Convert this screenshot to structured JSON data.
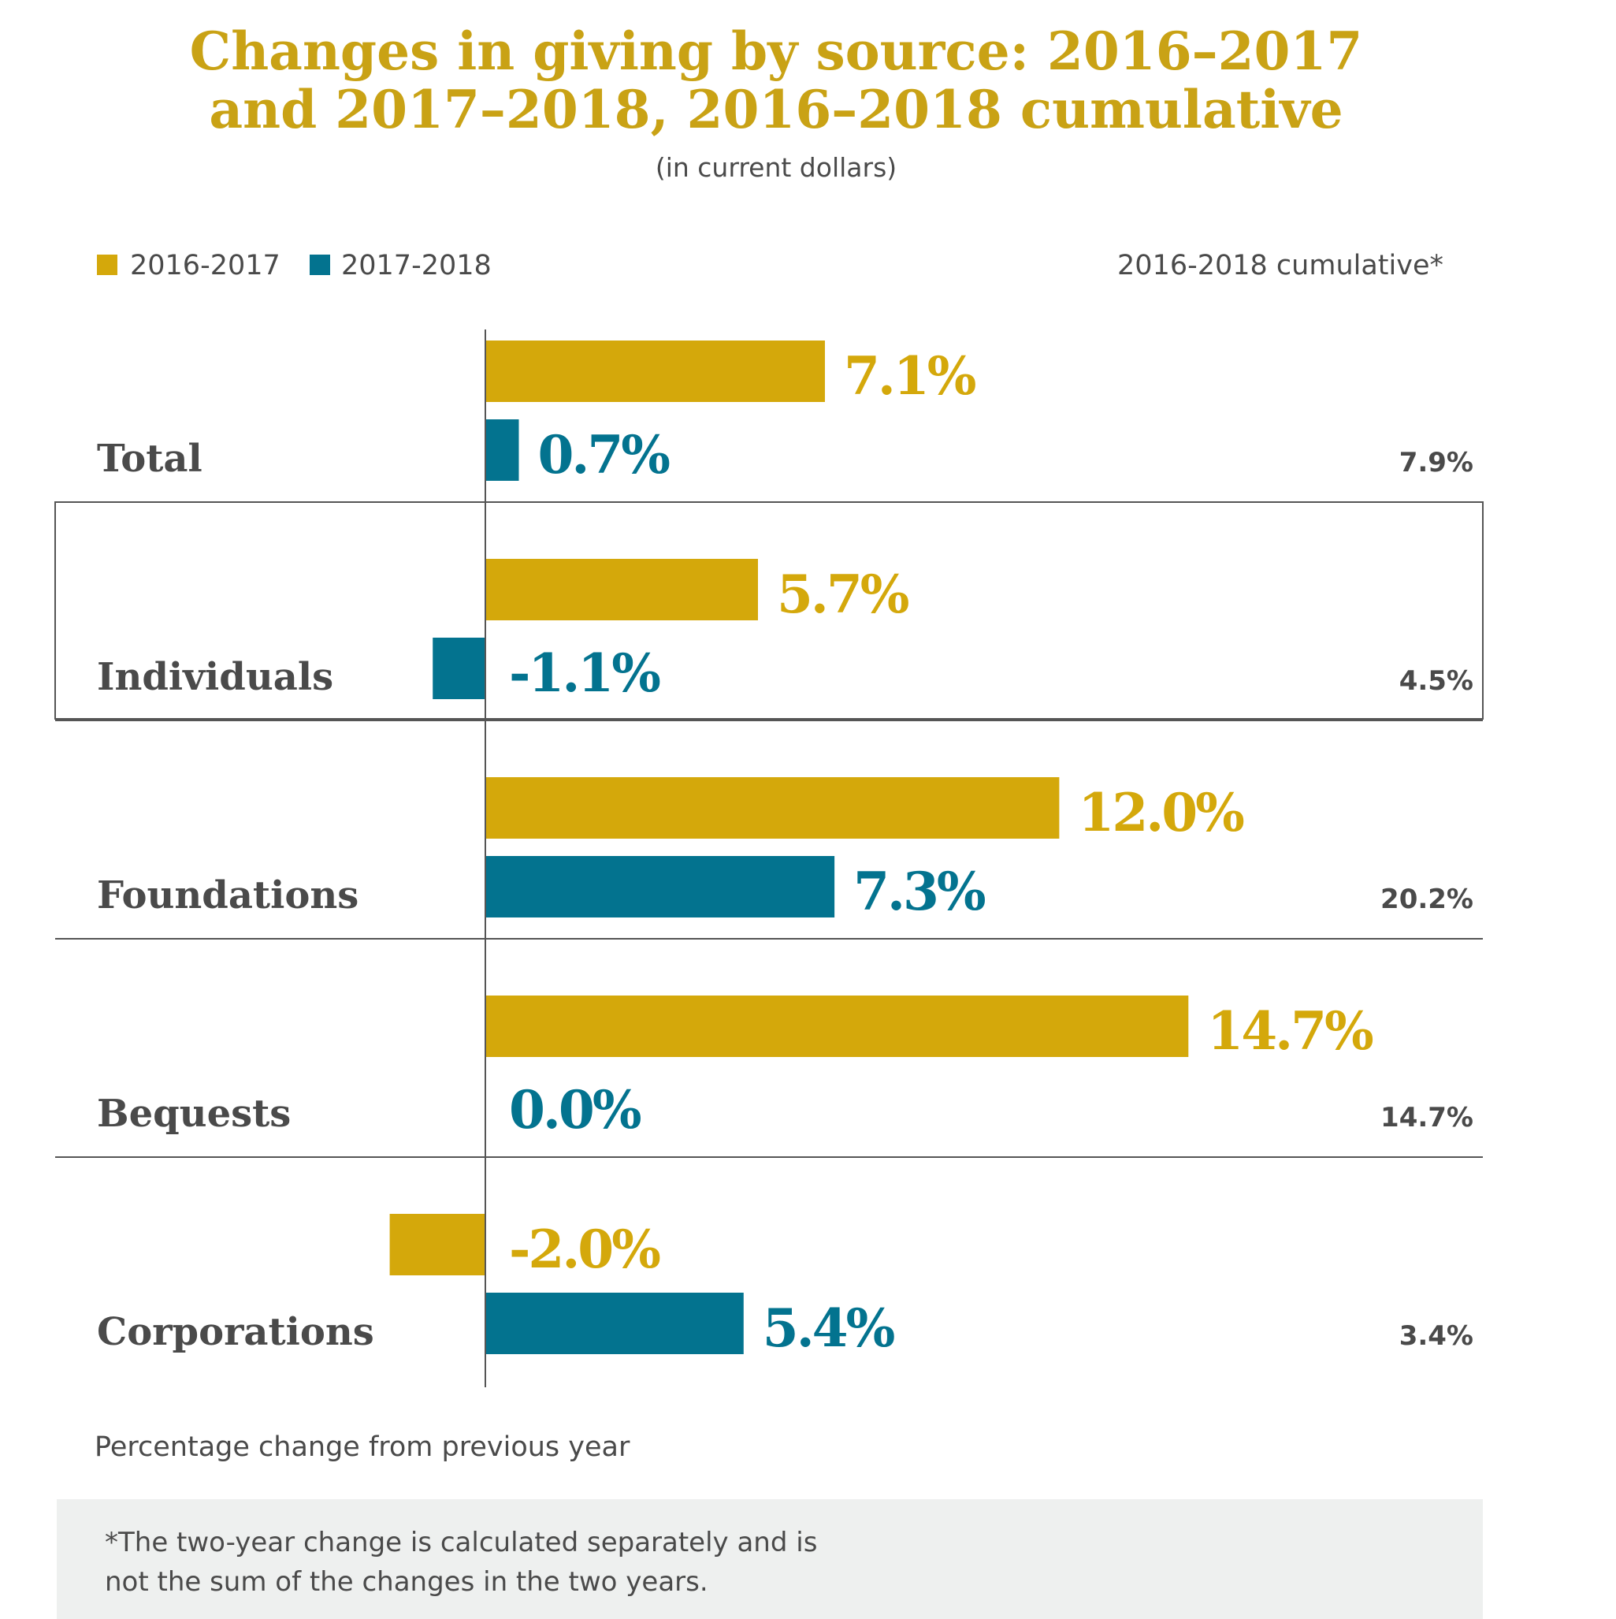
{
  "chart_data": {
    "type": "bar",
    "orientation": "horizontal",
    "title_line1": "Changes in giving by source: 2016–2017",
    "title_line2": "and 2017–2018, 2016–2018 cumulative",
    "subtitle": "(in current dollars)",
    "categories": [
      "Total",
      "Individuals",
      "Foundations",
      "Bequests",
      "Corporations"
    ],
    "series": [
      {
        "name": "2016-2017",
        "color": "#d4a80b",
        "values": [
          7.1,
          5.7,
          12.0,
          14.7,
          -2.0
        ],
        "labels": [
          "7.1%",
          "5.7%",
          "12.0%",
          "14.7%",
          "-2.0%"
        ]
      },
      {
        "name": "2017-2018",
        "color": "#03738f",
        "values": [
          0.7,
          -1.1,
          7.3,
          0.0,
          5.4
        ],
        "labels": [
          "0.7%",
          "-1.1%",
          "7.3%",
          "0.0%",
          "5.4%"
        ]
      }
    ],
    "cumulative_header": "2016-2018 cumulative*",
    "cumulative": [
      "7.9%",
      "4.5%",
      "20.2%",
      "14.7%",
      "3.4%"
    ],
    "xlabel": "Percentage change from previous year",
    "xlim": [
      -2.5,
      16
    ],
    "grid": false,
    "legend_position": "top-left",
    "footnote_line1": "*The two-year change is calculated separately and is",
    "footnote_line2": "not the sum of the changes in the two years."
  }
}
